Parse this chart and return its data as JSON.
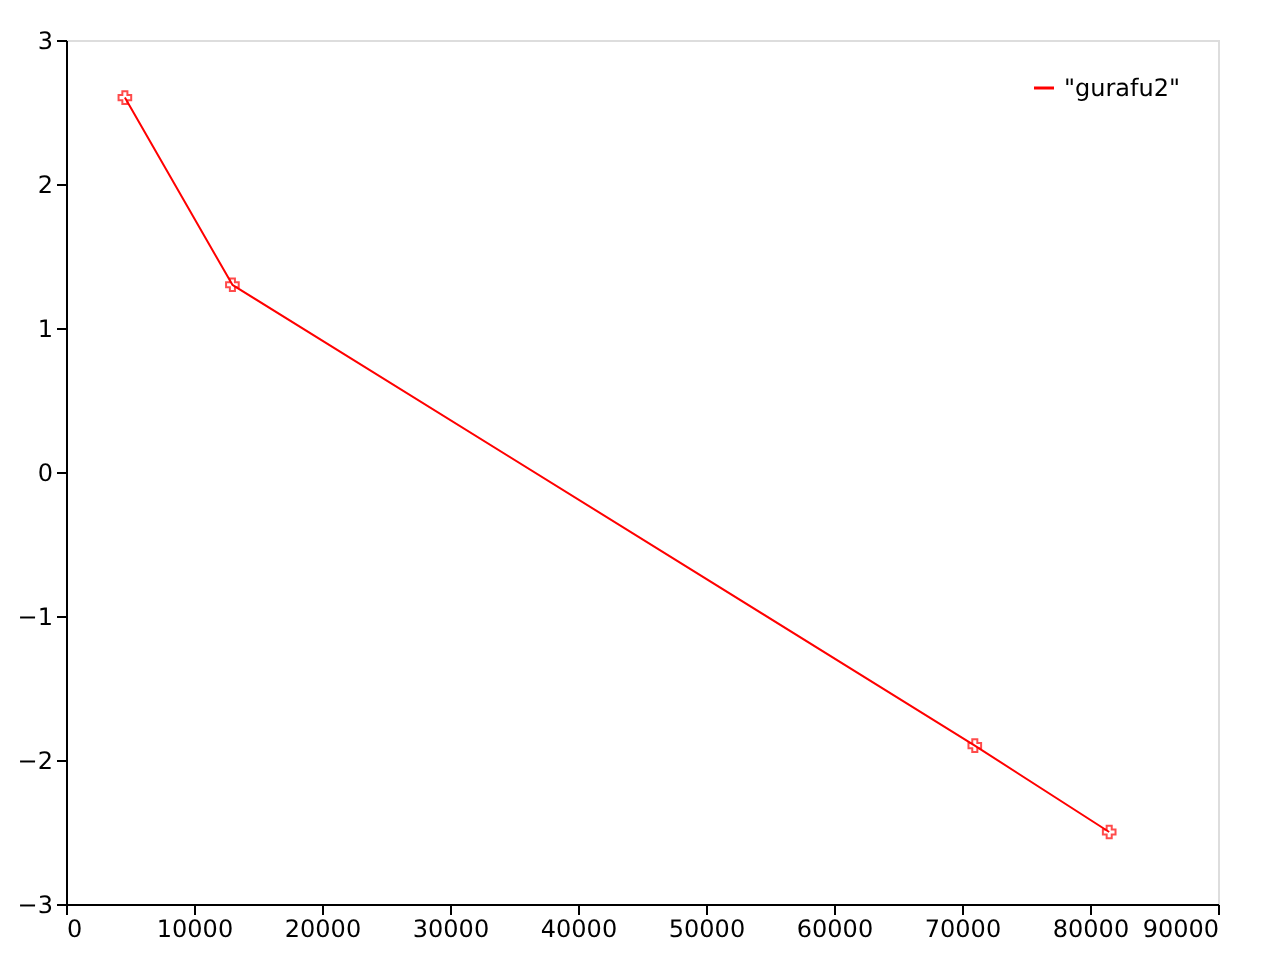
{
  "chart_data": {
    "type": "line",
    "x": [
      4600,
      13000,
      71000,
      81500
    ],
    "series": [
      {
        "name": "\"gurafu2\"",
        "color": "#ff0000",
        "values": [
          2.6,
          1.3,
          -1.9,
          -2.5
        ]
      }
    ],
    "xlim": [
      0,
      90000
    ],
    "xticks": [
      0,
      10000,
      20000,
      30000,
      40000,
      50000,
      60000,
      70000,
      80000,
      90000
    ],
    "ylim": [
      -3,
      3
    ],
    "yticks": [
      -3,
      -2,
      -1,
      0,
      1,
      2,
      3
    ],
    "grid": false,
    "legend": "top right",
    "marker": "cross",
    "line_style": "solid"
  }
}
